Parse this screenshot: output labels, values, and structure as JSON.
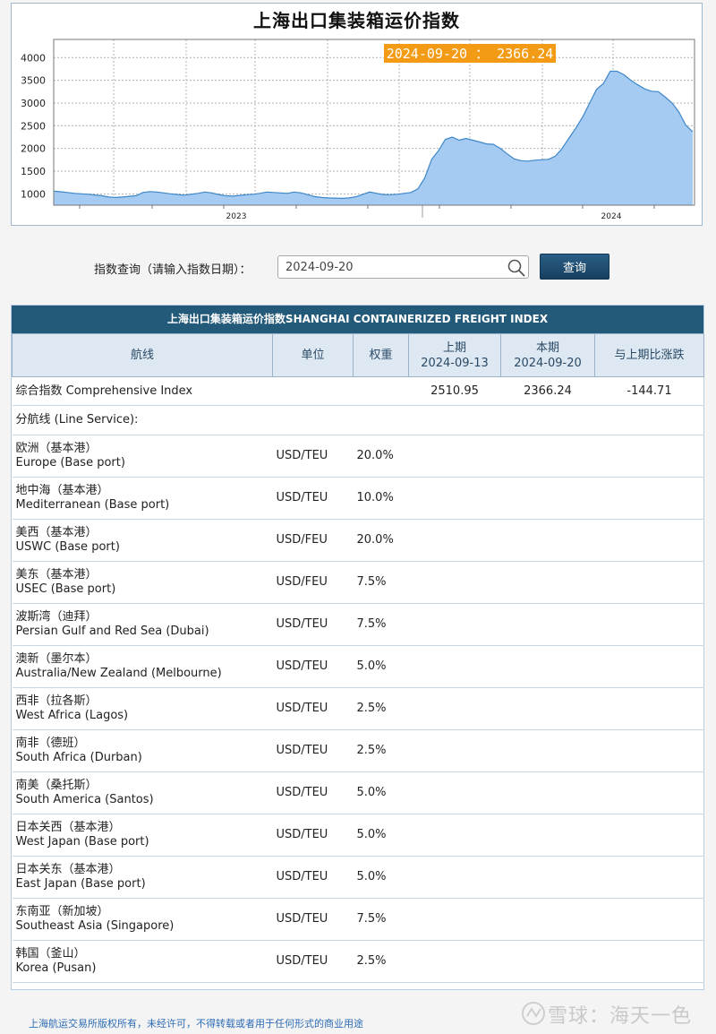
{
  "chart_data": {
    "type": "area",
    "title": "上海出口集装箱运价指数",
    "x_ticks": [
      "2023",
      "2024"
    ],
    "y_ticks": [
      1000,
      1500,
      2000,
      2500,
      3000,
      3500,
      4000
    ],
    "ylim": [
      750,
      4400
    ],
    "grid": true,
    "fill_color": "#a6cbf3",
    "line_color": "#3d86c7",
    "tooltip": {
      "date": "2024-09-20",
      "value": "2366.24",
      "label": "2024-09-20 ： 2366.24"
    },
    "series": [
      {
        "values": [
          1060,
          1045,
          1030,
          1010,
          1000,
          990,
          975,
          960,
          930,
          920,
          930,
          945,
          960,
          1030,
          1050,
          1040,
          1020,
          1000,
          985,
          970,
          990,
          1010,
          1040,
          1020,
          985,
          960,
          950,
          965,
          980,
          990,
          1010,
          1040,
          1030,
          1020,
          1010,
          1040,
          1020,
          980,
          940,
          920,
          910,
          905,
          900,
          910,
          935,
          990,
          1040,
          1010,
          985,
          980,
          990,
          1010,
          1030,
          1110,
          1350,
          1760,
          1950,
          2200,
          2250,
          2180,
          2220,
          2180,
          2140,
          2100,
          2090,
          2000,
          1880,
          1770,
          1730,
          1720,
          1740,
          1750,
          1760,
          1830,
          2000,
          2230,
          2450,
          2700,
          3000,
          3300,
          3430,
          3700,
          3700,
          3620,
          3500,
          3400,
          3310,
          3260,
          3250,
          3130,
          3000,
          2800,
          2510,
          2366
        ]
      }
    ]
  },
  "query": {
    "label": "指数查询（请输入指数日期）：",
    "date_value": "2024-09-20",
    "button_label": "查询"
  },
  "table": {
    "banner": "上海出口集装箱运价指数SHANGHAI CONTAINERIZED FREIGHT INDEX",
    "headers": {
      "route": "航线",
      "unit": "单位",
      "weight": "权重",
      "prev_label": "上期",
      "prev_date": "2024-09-13",
      "curr_label": "本期",
      "curr_date": "2024-09-20",
      "change": "与上期比涨跌"
    },
    "comprehensive": {
      "name": "综合指数 Comprehensive Index",
      "prev": "2510.95",
      "curr": "2366.24",
      "change": "-144.71"
    },
    "line_service_label": "分航线 (Line Service):",
    "routes": [
      {
        "cn": "欧洲（基本港）",
        "en": "Europe (Base port)",
        "unit": "USD/TEU",
        "weight": "20.0%"
      },
      {
        "cn": "地中海（基本港）",
        "en": "Mediterranean (Base port)",
        "unit": "USD/TEU",
        "weight": "10.0%"
      },
      {
        "cn": "美西（基本港）",
        "en": "USWC (Base port)",
        "unit": "USD/FEU",
        "weight": "20.0%"
      },
      {
        "cn": "美东（基本港）",
        "en": "USEC (Base port)",
        "unit": "USD/FEU",
        "weight": "7.5%"
      },
      {
        "cn": "波斯湾（迪拜）",
        "en": "Persian Gulf and Red Sea (Dubai)",
        "unit": "USD/TEU",
        "weight": "7.5%"
      },
      {
        "cn": "澳新（墨尔本）",
        "en": "Australia/New Zealand (Melbourne)",
        "unit": "USD/TEU",
        "weight": "5.0%"
      },
      {
        "cn": "西非（拉各斯）",
        "en": "West Africa (Lagos)",
        "unit": "USD/TEU",
        "weight": "2.5%"
      },
      {
        "cn": "南非（德班）",
        "en": "South Africa (Durban)",
        "unit": "USD/TEU",
        "weight": "2.5%"
      },
      {
        "cn": "南美（桑托斯）",
        "en": "South America (Santos)",
        "unit": "USD/TEU",
        "weight": "5.0%"
      },
      {
        "cn": "日本关西（基本港）",
        "en": "West Japan (Base port)",
        "unit": "USD/TEU",
        "weight": "5.0%"
      },
      {
        "cn": "日本关东（基本港）",
        "en": "East Japan (Base port)",
        "unit": "USD/TEU",
        "weight": "5.0%"
      },
      {
        "cn": "东南亚（新加坡）",
        "en": "Southeast Asia (Singapore)",
        "unit": "USD/TEU",
        "weight": "7.5%"
      },
      {
        "cn": "韩国（釜山）",
        "en": "Korea (Pusan)",
        "unit": "USD/TEU",
        "weight": "2.5%"
      }
    ]
  },
  "footer": {
    "copyright": "上海航运交易所版权所有，未经许可，不得转载或者用于任何形式的商业用途",
    "watermark": "雪球：海天一色"
  }
}
